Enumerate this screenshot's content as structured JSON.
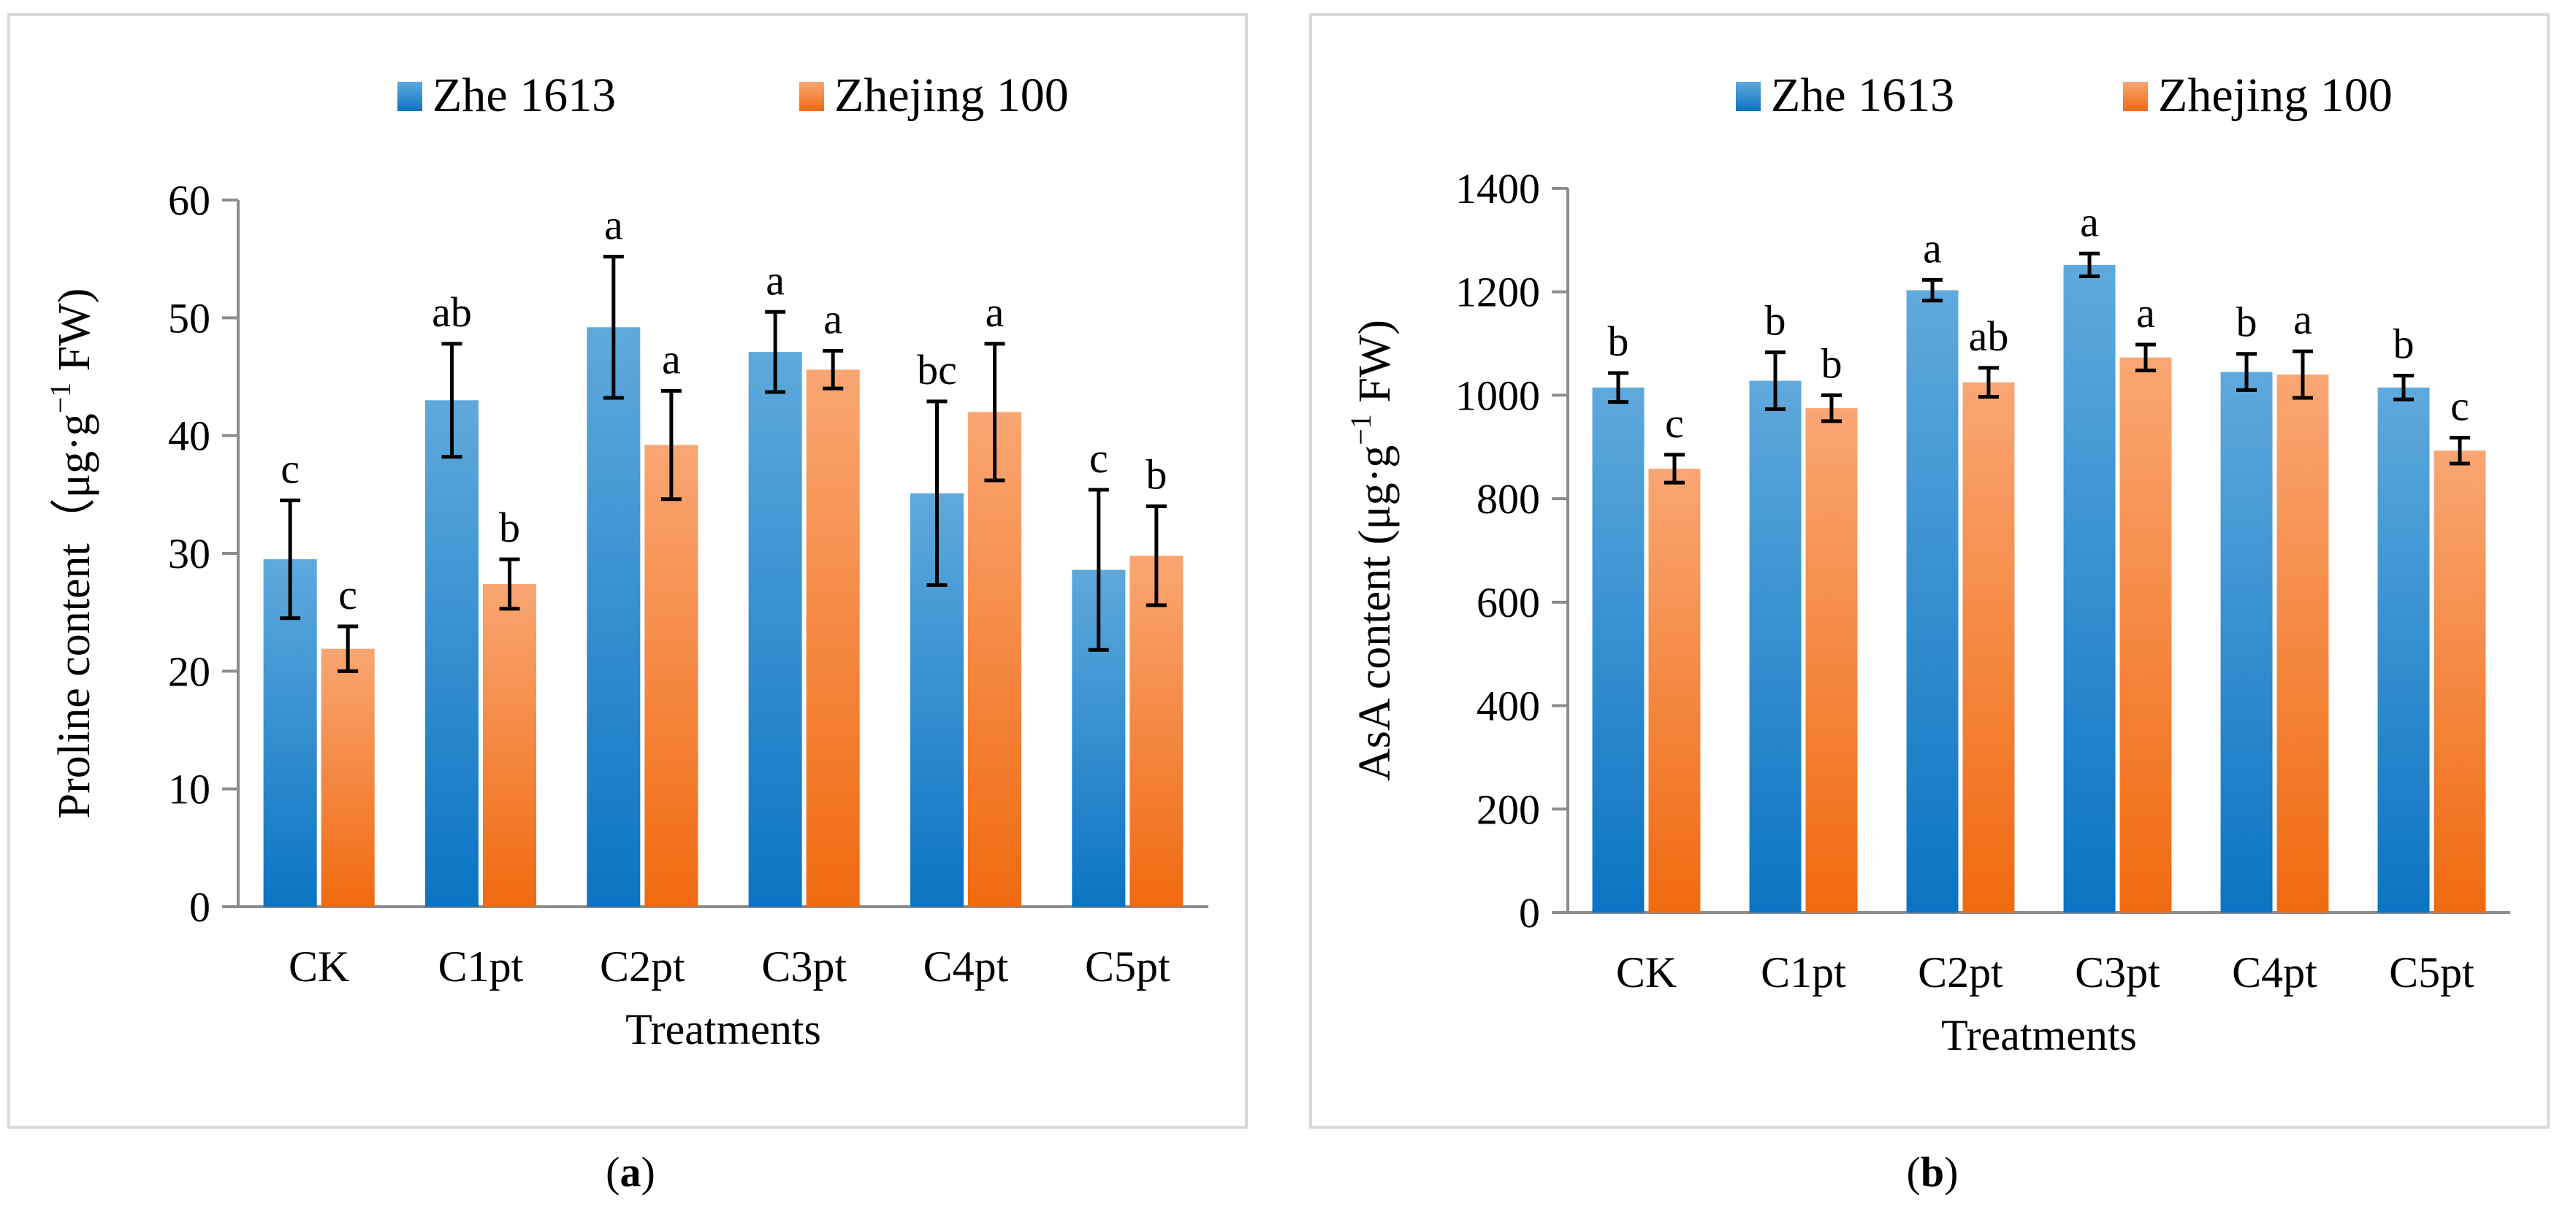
{
  "colors": {
    "zhe1613_top": "#5fa9dc",
    "zhe1613_bottom": "#0b74c2",
    "zhejing100_top": "#f9a673",
    "zhejing100_bottom": "#f06a10",
    "axis": "#8c8c8c",
    "grid": "#d9d9d9",
    "text": "#000000"
  },
  "chart_data": [
    {
      "type": "bar",
      "panel_label": "a",
      "ylabel": "Proline content（μg·g",
      "ylabel_sup": "−1",
      "ylabel_tail": " FW)",
      "xlabel": "Treatments",
      "categories": [
        "CK",
        "C1pt",
        "C2pt",
        "C3pt",
        "C4pt",
        "C5pt"
      ],
      "ylim": [
        0,
        60
      ],
      "yticks": [
        0,
        10,
        20,
        30,
        40,
        50,
        60
      ],
      "legend_position": "top-center",
      "series": [
        {
          "name": "Zhe 1613",
          "values": [
            29.5,
            43,
            49.2,
            47.1,
            35.1,
            28.6
          ],
          "errors": [
            5,
            4.8,
            6,
            3.4,
            7.8,
            6.8
          ],
          "letters": [
            "c",
            "ab",
            "a",
            "a",
            "bc",
            "c"
          ]
        },
        {
          "name": "Zhejing 100",
          "values": [
            21.9,
            27.4,
            39.2,
            45.6,
            42,
            29.8
          ],
          "errors": [
            1.9,
            2.1,
            4.6,
            1.6,
            5.8,
            4.2
          ],
          "letters": [
            "c",
            "b",
            "a",
            "a",
            "a",
            "b"
          ]
        }
      ]
    },
    {
      "type": "bar",
      "panel_label": "b",
      "ylabel": "AsA content (μg·g",
      "ylabel_sup": "−1",
      "ylabel_tail": " FW)",
      "xlabel": "Treatments",
      "categories": [
        "CK",
        "C1pt",
        "C2pt",
        "C3pt",
        "C4pt",
        "C5pt"
      ],
      "ylim": [
        0,
        1400
      ],
      "yticks": [
        0,
        200,
        400,
        600,
        800,
        1000,
        1200,
        1400
      ],
      "legend_position": "top-center",
      "series": [
        {
          "name": "Zhe 1613",
          "values": [
            1015,
            1028,
            1203,
            1252,
            1045,
            1015
          ],
          "errors": [
            28,
            55,
            20,
            22,
            35,
            23
          ],
          "letters": [
            "b",
            "b",
            "a",
            "a",
            "b",
            "b"
          ]
        },
        {
          "name": "Zhejing 100",
          "values": [
            858,
            975,
            1025,
            1073,
            1040,
            893
          ],
          "errors": [
            27,
            25,
            28,
            25,
            45,
            25
          ],
          "letters": [
            "c",
            "b",
            "ab",
            "a",
            "a",
            "c"
          ]
        }
      ]
    }
  ]
}
